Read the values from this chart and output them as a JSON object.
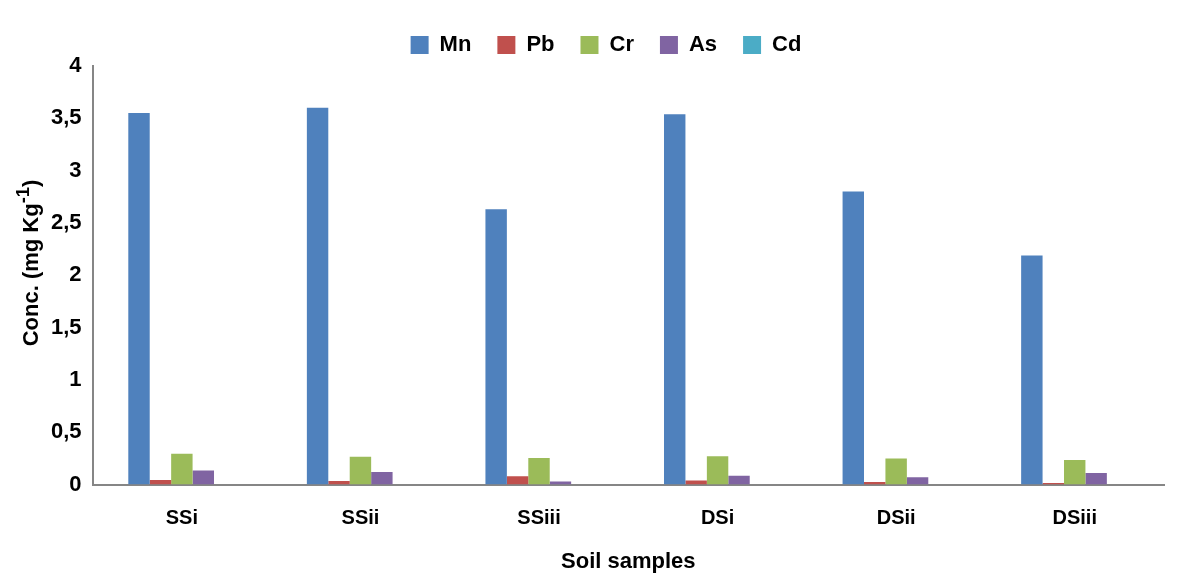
{
  "chart_data": {
    "type": "bar",
    "xlabel": "Soil samples",
    "ylabel": "Conc. (mg Kg$^{-1}$)",
    "categories": [
      "SSi",
      "SSii",
      "SSiii",
      "DSi",
      "DSii",
      "DSiii"
    ],
    "series": [
      {
        "name": "Mn",
        "color": "#4f81bd",
        "values": [
          3.55,
          3.6,
          2.63,
          3.54,
          2.8,
          2.19
        ]
      },
      {
        "name": "Pb",
        "color": "#c0504d",
        "values": [
          0.045,
          0.035,
          0.08,
          0.04,
          0.025,
          0.015
        ]
      },
      {
        "name": "Cr",
        "color": "#9bbb59",
        "values": [
          0.295,
          0.265,
          0.255,
          0.27,
          0.25,
          0.235
        ]
      },
      {
        "name": "As",
        "color": "#8064a2",
        "values": [
          0.135,
          0.12,
          0.03,
          0.085,
          0.07,
          0.11
        ]
      },
      {
        "name": "Cd",
        "color": "#4bacc6",
        "values": [
          0,
          0,
          0,
          0,
          0,
          0
        ]
      }
    ],
    "ylim": [
      0,
      4
    ],
    "yticks": [
      0,
      {
        "value": 0.5,
        "label": "0,5"
      },
      1,
      {
        "value": 1.5,
        "label": "1,5"
      },
      2,
      {
        "value": 2.5,
        "label": "2,5"
      },
      3,
      {
        "value": 3.5,
        "label": "3,5"
      },
      4
    ],
    "grid": false,
    "legend": "top"
  }
}
